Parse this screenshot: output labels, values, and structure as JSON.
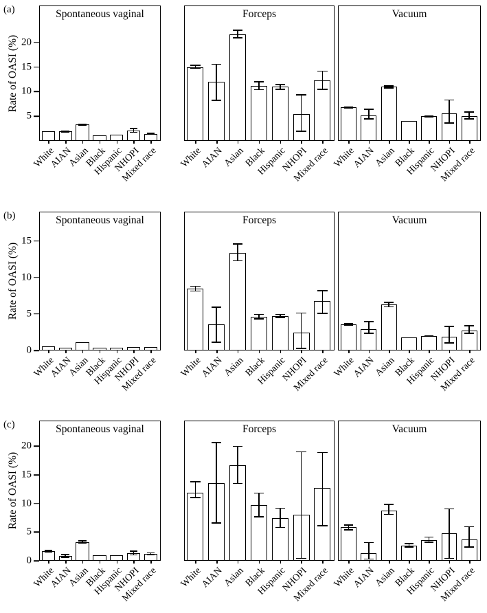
{
  "chart_data": [
    {
      "type": "bar",
      "row_label": "(a)",
      "ylabel": "Rate of OASI (%)",
      "ylim": [
        0,
        27.5
      ],
      "yticks": [
        5,
        10,
        15,
        20
      ],
      "categories": [
        "White",
        "AIAN",
        "Asian",
        "Black",
        "Hispanic",
        "NHOPI",
        "Mixed race"
      ],
      "panels": [
        {
          "title": "Spontaneous vaginal",
          "values": [
            1.8,
            1.8,
            3.2,
            1.0,
            1.1,
            2.0,
            1.3
          ],
          "err_low": [
            null,
            1.6,
            3.0,
            null,
            null,
            1.5,
            1.1
          ],
          "err_high": [
            null,
            2.0,
            3.4,
            null,
            null,
            2.5,
            1.5
          ]
        },
        {
          "title": "Forceps",
          "values": [
            15.1,
            12.0,
            21.9,
            11.2,
            11.0,
            5.4,
            12.4
          ],
          "err_low": [
            14.7,
            8.1,
            21.0,
            10.3,
            10.4,
            1.7,
            10.4
          ],
          "err_high": [
            15.6,
            15.8,
            22.8,
            12.2,
            11.6,
            9.5,
            14.4
          ]
        },
        {
          "title": "Vacuum",
          "values": [
            6.8,
            5.1,
            11.0,
            4.0,
            4.9,
            5.5,
            5.0
          ],
          "err_low": [
            6.6,
            4.3,
            10.7,
            null,
            4.7,
            3.4,
            4.3
          ],
          "err_high": [
            7.0,
            6.5,
            11.3,
            null,
            5.1,
            8.4,
            5.9
          ]
        }
      ]
    },
    {
      "type": "bar",
      "row_label": "(b)",
      "ylabel": "Rate of OASI (%)",
      "ylim": [
        0,
        19
      ],
      "yticks": [
        0,
        5,
        10,
        15
      ],
      "categories": [
        "White",
        "AIAN",
        "Asian",
        "Black",
        "Hispanic",
        "NHOPI",
        "Mixed race"
      ],
      "panels": [
        {
          "title": "Spontaneous vaginal",
          "values": [
            0.5,
            0.3,
            1.1,
            0.3,
            0.3,
            0.4,
            0.4
          ],
          "err_low": [
            null,
            null,
            null,
            null,
            null,
            null,
            null
          ],
          "err_high": [
            null,
            null,
            null,
            null,
            null,
            null,
            null
          ]
        },
        {
          "title": "Forceps",
          "values": [
            8.5,
            3.5,
            13.5,
            4.6,
            4.7,
            2.4,
            6.8
          ],
          "err_low": [
            8.1,
            1.0,
            12.3,
            4.2,
            4.4,
            0.1,
            5.0
          ],
          "err_high": [
            8.9,
            6.0,
            14.8,
            5.0,
            5.0,
            5.2,
            8.3
          ]
        },
        {
          "title": "Vacuum",
          "values": [
            3.5,
            2.9,
            6.3,
            1.7,
            1.9,
            1.8,
            2.7
          ],
          "err_low": [
            3.3,
            2.2,
            5.9,
            null,
            1.8,
            0.9,
            2.2
          ],
          "err_high": [
            3.7,
            4.0,
            6.7,
            null,
            2.0,
            3.3,
            3.4
          ]
        }
      ]
    },
    {
      "type": "bar",
      "row_label": "(c)",
      "ylabel": "Rate of OASI (%)",
      "ylim": [
        0,
        24.5
      ],
      "yticks": [
        0,
        5,
        10,
        15,
        20
      ],
      "categories": [
        "White",
        "AIAN",
        "Asian",
        "Black",
        "Hispanic",
        "NHOPI",
        "Mixed race"
      ],
      "panels": [
        {
          "title": "Spontaneous vaginal",
          "values": [
            1.6,
            0.7,
            3.2,
            0.8,
            0.8,
            1.2,
            1.1
          ],
          "err_low": [
            1.4,
            0.4,
            2.9,
            null,
            0.7,
            0.8,
            0.9
          ],
          "err_high": [
            1.8,
            1.1,
            3.5,
            null,
            0.9,
            1.7,
            1.4
          ]
        },
        {
          "title": "Forceps",
          "values": [
            12.0,
            13.7,
            16.8,
            9.8,
            7.5,
            8.0,
            12.8
          ],
          "err_low": [
            11.0,
            6.5,
            13.5,
            7.6,
            5.7,
            0.2,
            6.0
          ],
          "err_high": [
            14.0,
            21.0,
            20.3,
            12.0,
            9.3,
            19.3,
            19.2
          ]
        },
        {
          "title": "Vacuum",
          "values": [
            5.8,
            1.2,
            8.8,
            2.6,
            3.5,
            4.7,
            3.7
          ],
          "err_low": [
            5.3,
            0.1,
            8.0,
            2.2,
            3.1,
            0.2,
            2.2
          ],
          "err_high": [
            6.3,
            3.2,
            10.0,
            3.0,
            4.2,
            9.2,
            6.0
          ]
        }
      ]
    }
  ]
}
